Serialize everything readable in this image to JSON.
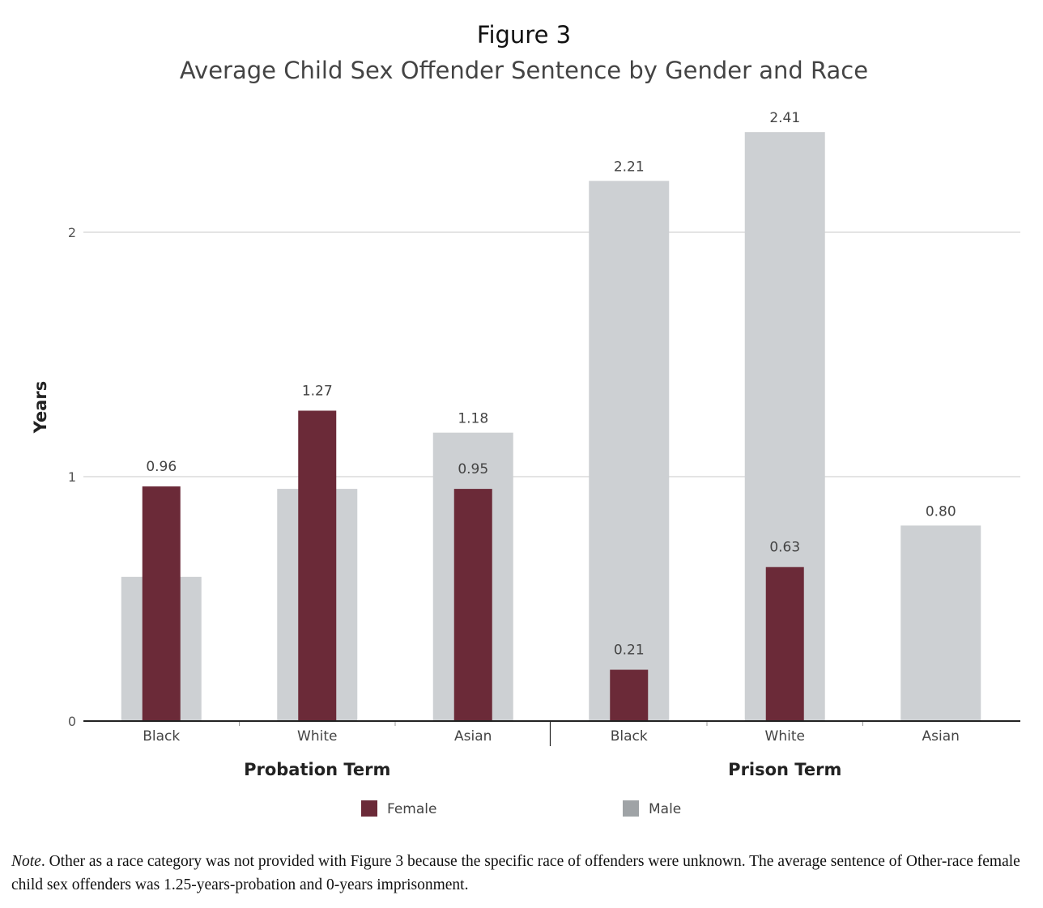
{
  "chart_data": {
    "type": "bar",
    "title": "Figure 3",
    "subtitle": "Average Child Sex Offender Sentence by Gender and Race",
    "ylabel": "Years",
    "ylim": [
      0,
      2.5
    ],
    "yticks": [
      0,
      1,
      2
    ],
    "grid": true,
    "groups": [
      {
        "name": "Probation Term",
        "categories": [
          "Black",
          "White",
          "Asian"
        ],
        "series": [
          {
            "name": "Male",
            "values": [
              0.59,
              0.95,
              1.18
            ],
            "labels": [
              "",
              "",
              "1.18"
            ]
          },
          {
            "name": "Female",
            "values": [
              0.96,
              1.27,
              0.95
            ],
            "labels": [
              "0.96",
              "1.27",
              "0.95"
            ]
          }
        ]
      },
      {
        "name": "Prison Term",
        "categories": [
          "Black",
          "White",
          "Asian"
        ],
        "series": [
          {
            "name": "Male",
            "values": [
              2.21,
              2.41,
              0.8
            ],
            "labels": [
              "2.21",
              "2.41",
              "0.80"
            ]
          },
          {
            "name": "Female",
            "values": [
              0.21,
              0.63,
              0
            ],
            "labels": [
              "0.21",
              "0.63",
              ""
            ]
          }
        ]
      }
    ],
    "legend": {
      "position": "bottom",
      "items": [
        {
          "name": "Female",
          "color": "#6b2a38"
        },
        {
          "name": "Male",
          "color": "#9fa3a6"
        }
      ]
    },
    "colors": {
      "Male": "#cdd0d3",
      "Female": "#6b2a38"
    }
  },
  "note": {
    "lead": "Note",
    "text": ". Other as a race category was not provided with Figure 3 because the specific race of offenders were unknown. The average sentence of Other-race female child sex offenders was 1.25-years-probation and 0-years imprisonment."
  }
}
